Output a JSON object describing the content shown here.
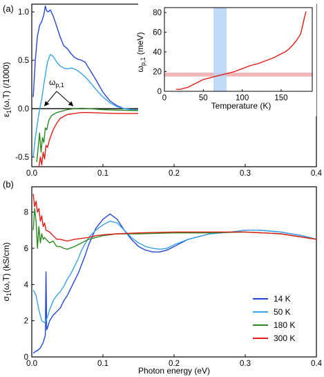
{
  "chart_data": [
    {
      "type": "line",
      "panel_label": "(a)",
      "xlabel": "",
      "ylabel": "ε1(ω,T) (/1000)",
      "ylabel_main": "ε",
      "ylabel_sub": "1",
      "ylabel_rest": "(ω,T) (/1000)",
      "xlim": [
        0,
        0.4
      ],
      "ylim": [
        -0.6,
        1.08
      ],
      "x_ticks": [
        "0.0",
        "0.1",
        "0.2",
        "0.3",
        "0.4"
      ],
      "y_ticks": [
        "-0.5",
        "0.0",
        "0.5",
        "1.0"
      ],
      "zero_line": true,
      "annotation": {
        "text": "ω p,1",
        "main": "ω",
        "sub": "p,1",
        "points_to": [
          [
            0.016,
            0.0
          ],
          [
            0.058,
            0.0
          ]
        ]
      },
      "series": [
        {
          "name": "14 K",
          "color": "#2346d6",
          "x": [
            0.002,
            0.005,
            0.008,
            0.011,
            0.014,
            0.017,
            0.019,
            0.021,
            0.023,
            0.026,
            0.03,
            0.035,
            0.04,
            0.045,
            0.05,
            0.055,
            0.06,
            0.065,
            0.07,
            0.075,
            0.08,
            0.09,
            0.1,
            0.11,
            0.12,
            0.13,
            0.14,
            0.16,
            0.18,
            0.2,
            0.22,
            0.25,
            0.28,
            0.3,
            0.33,
            0.36,
            0.4
          ],
          "values": [
            0.12,
            0.5,
            0.75,
            0.86,
            0.9,
            0.97,
            1.06,
            1.01,
            1.0,
            1.02,
            0.96,
            0.85,
            0.74,
            0.65,
            0.62,
            0.57,
            0.53,
            0.51,
            0.5,
            0.48,
            0.42,
            0.3,
            0.17,
            0.08,
            0.03,
            0.0,
            -0.01,
            -0.02,
            -0.02,
            -0.02,
            -0.015,
            -0.015,
            -0.02,
            -0.025,
            -0.03,
            -0.035,
            -0.04
          ]
        },
        {
          "name": "50 K",
          "color": "#35a3e8",
          "x": [
            0.002,
            0.005,
            0.01,
            0.014,
            0.018,
            0.022,
            0.026,
            0.03,
            0.035,
            0.04,
            0.045,
            0.05,
            0.055,
            0.06,
            0.065,
            0.07,
            0.075,
            0.08,
            0.09,
            0.1,
            0.11,
            0.12,
            0.13,
            0.15,
            0.18,
            0.2,
            0.25,
            0.3,
            0.35,
            0.4
          ],
          "values": [
            -0.5,
            -0.3,
            -0.05,
            0.1,
            0.3,
            0.48,
            0.56,
            0.54,
            0.48,
            0.44,
            0.42,
            0.41,
            0.42,
            0.41,
            0.39,
            0.36,
            0.33,
            0.29,
            0.2,
            0.12,
            0.06,
            0.02,
            0.0,
            -0.015,
            -0.02,
            -0.02,
            -0.02,
            -0.025,
            -0.03,
            -0.04
          ]
        },
        {
          "name": "180 K",
          "color": "#2a8a22",
          "x": [
            0.007,
            0.009,
            0.011,
            0.013,
            0.015,
            0.017,
            0.019,
            0.021,
            0.024,
            0.027,
            0.03,
            0.035,
            0.04,
            0.045,
            0.05,
            0.06,
            0.07,
            0.08,
            0.1,
            0.12,
            0.15,
            0.2,
            0.25,
            0.3,
            0.35,
            0.4
          ],
          "values": [
            -0.55,
            -0.4,
            -0.25,
            -0.45,
            -0.3,
            -0.35,
            -0.2,
            -0.22,
            -0.12,
            -0.08,
            -0.06,
            -0.04,
            -0.03,
            -0.02,
            -0.01,
            0.0,
            0.005,
            0.0,
            -0.01,
            -0.015,
            -0.02,
            -0.025,
            -0.03,
            -0.035,
            -0.04,
            -0.045
          ]
        },
        {
          "name": "300 K",
          "color": "#e21c12",
          "x": [
            0.01,
            0.012,
            0.014,
            0.016,
            0.018,
            0.02,
            0.022,
            0.025,
            0.03,
            0.035,
            0.04,
            0.045,
            0.05,
            0.06,
            0.07,
            0.08,
            0.1,
            0.12,
            0.15,
            0.2,
            0.25,
            0.3,
            0.35,
            0.4
          ],
          "values": [
            -0.6,
            -0.5,
            -0.58,
            -0.45,
            -0.52,
            -0.38,
            -0.4,
            -0.32,
            -0.22,
            -0.15,
            -0.1,
            -0.08,
            -0.06,
            -0.05,
            -0.04,
            -0.04,
            -0.045,
            -0.05,
            -0.05,
            -0.05,
            -0.05,
            -0.05,
            -0.055,
            -0.055
          ]
        }
      ]
    },
    {
      "type": "line",
      "inset": true,
      "xlabel": "Temperature (K)",
      "ylabel": "ωp,1 (meV)",
      "ylabel_main": "ω",
      "ylabel_sub": "p,1",
      "ylabel_rest": " (meV)",
      "xlim": [
        0,
        190
      ],
      "ylim": [
        0,
        85
      ],
      "x_ticks": [
        "0",
        "50",
        "100",
        "150"
      ],
      "y_ticks": [
        "0",
        "20",
        "40",
        "60",
        "80"
      ],
      "shaded_band_y": [
        15,
        19
      ],
      "shaded_band_x": [
        63,
        80
      ],
      "band_colors": {
        "horizontal": "#f2b6b6",
        "vertical": "#b7d3f6"
      },
      "series": [
        {
          "name": "",
          "color": "#e21c12",
          "x": [
            15,
            20,
            25,
            30,
            35,
            40,
            45,
            50,
            55,
            60,
            65,
            70,
            75,
            80,
            90,
            100,
            110,
            120,
            130,
            140,
            150,
            155,
            160,
            165,
            170,
            175,
            178,
            180,
            182
          ],
          "values": [
            2,
            2,
            3,
            4,
            6,
            8,
            10,
            12,
            13,
            14,
            15,
            16,
            17,
            18,
            20,
            23,
            26,
            28,
            31,
            34,
            38,
            40,
            43,
            47,
            52,
            58,
            68,
            75,
            81
          ]
        }
      ]
    },
    {
      "type": "line",
      "panel_label": "(b)",
      "xlabel": "Photon energy (eV)",
      "ylabel": "σ1(ω,T) (kS/cm)",
      "ylabel_main": "σ",
      "ylabel_sub": "1",
      "ylabel_rest": "(ω,T) (kS/cm)",
      "xlim": [
        0,
        0.4
      ],
      "ylim": [
        0,
        9.4
      ],
      "x_ticks": [
        "0.0",
        "0.1",
        "0.2",
        "0.3",
        "0.4"
      ],
      "y_ticks": [
        "0",
        "2",
        "4",
        "6",
        "8"
      ],
      "legend": {
        "placement": "bottom-right",
        "entries": [
          "14 K",
          "50 K",
          "180 K",
          "300 K"
        ]
      },
      "series": [
        {
          "name": "14 K",
          "color": "#2346d6",
          "x": [
            0.002,
            0.005,
            0.008,
            0.012,
            0.016,
            0.019,
            0.02,
            0.021,
            0.022,
            0.025,
            0.03,
            0.035,
            0.04,
            0.045,
            0.05,
            0.055,
            0.06,
            0.065,
            0.07,
            0.075,
            0.08,
            0.09,
            0.1,
            0.11,
            0.12,
            0.13,
            0.14,
            0.15,
            0.16,
            0.17,
            0.18,
            0.19,
            0.2,
            0.22,
            0.25,
            0.28,
            0.3,
            0.32,
            0.35,
            0.38,
            0.4
          ],
          "values": [
            0.2,
            0.3,
            0.35,
            0.5,
            0.8,
            1.2,
            4.7,
            1.5,
            1.6,
            2.0,
            2.3,
            2.5,
            2.7,
            3.1,
            3.4,
            3.8,
            4.2,
            4.6,
            5.1,
            5.6,
            6.2,
            7.1,
            7.6,
            7.9,
            7.6,
            7.0,
            6.5,
            6.1,
            5.9,
            5.8,
            5.8,
            5.9,
            6.1,
            6.5,
            6.8,
            6.9,
            7.0,
            7.0,
            6.9,
            6.7,
            6.5
          ]
        },
        {
          "name": "50 K",
          "color": "#35a3e8",
          "x": [
            0.002,
            0.006,
            0.01,
            0.014,
            0.018,
            0.02,
            0.022,
            0.025,
            0.03,
            0.035,
            0.04,
            0.045,
            0.05,
            0.055,
            0.06,
            0.065,
            0.07,
            0.08,
            0.09,
            0.1,
            0.11,
            0.12,
            0.13,
            0.14,
            0.15,
            0.16,
            0.17,
            0.18,
            0.19,
            0.2,
            0.22,
            0.25,
            0.28,
            0.3,
            0.32,
            0.35,
            0.38,
            0.4
          ],
          "values": [
            3.7,
            3.4,
            2.6,
            2.0,
            1.9,
            2.0,
            2.2,
            2.6,
            3.1,
            3.4,
            3.6,
            3.9,
            4.3,
            4.6,
            5.0,
            5.4,
            5.9,
            6.6,
            7.0,
            7.3,
            7.5,
            7.4,
            7.0,
            6.6,
            6.3,
            6.1,
            6.0,
            5.95,
            6.0,
            6.2,
            6.5,
            6.8,
            6.9,
            7.0,
            7.0,
            6.9,
            6.7,
            6.5
          ]
        },
        {
          "name": "180 K",
          "color": "#2a8a22",
          "x": [
            0.002,
            0.004,
            0.006,
            0.008,
            0.01,
            0.012,
            0.014,
            0.016,
            0.018,
            0.02,
            0.025,
            0.03,
            0.035,
            0.04,
            0.045,
            0.05,
            0.06,
            0.07,
            0.08,
            0.09,
            0.1,
            0.12,
            0.15,
            0.2,
            0.25,
            0.3,
            0.35,
            0.4
          ],
          "values": [
            7.0,
            8.2,
            7.5,
            6.0,
            7.2,
            6.3,
            6.8,
            6.5,
            6.6,
            6.5,
            6.3,
            6.4,
            6.1,
            6.1,
            6.0,
            5.95,
            6.1,
            6.3,
            6.5,
            6.6,
            6.7,
            6.8,
            6.8,
            6.85,
            6.85,
            6.9,
            6.8,
            6.5
          ]
        },
        {
          "name": "300 K",
          "color": "#e21c12",
          "x": [
            0.002,
            0.004,
            0.006,
            0.008,
            0.01,
            0.012,
            0.014,
            0.016,
            0.018,
            0.02,
            0.025,
            0.03,
            0.035,
            0.04,
            0.045,
            0.05,
            0.06,
            0.07,
            0.08,
            0.09,
            0.1,
            0.12,
            0.15,
            0.2,
            0.25,
            0.3,
            0.35,
            0.4
          ],
          "values": [
            9.0,
            8.3,
            8.6,
            8.0,
            8.2,
            7.5,
            7.8,
            7.2,
            7.4,
            7.0,
            6.9,
            6.7,
            6.5,
            6.5,
            6.45,
            6.4,
            6.5,
            6.55,
            6.6,
            6.7,
            6.75,
            6.8,
            6.85,
            6.9,
            6.9,
            6.9,
            6.8,
            6.5
          ]
        }
      ]
    }
  ]
}
